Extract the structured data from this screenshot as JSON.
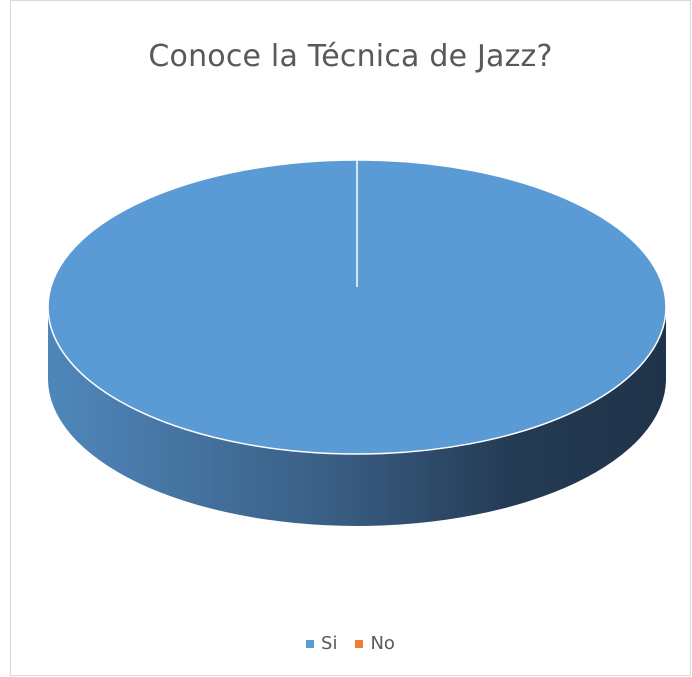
{
  "chart_data": {
    "type": "pie",
    "title": "Conoce la Técnica de Jazz?",
    "categories": [
      "Si",
      "No"
    ],
    "values": [
      100,
      0
    ],
    "colors": {
      "Si": "#5b9bd5",
      "No": "#ed7d31"
    },
    "legend_position": "bottom",
    "style": "3d"
  }
}
